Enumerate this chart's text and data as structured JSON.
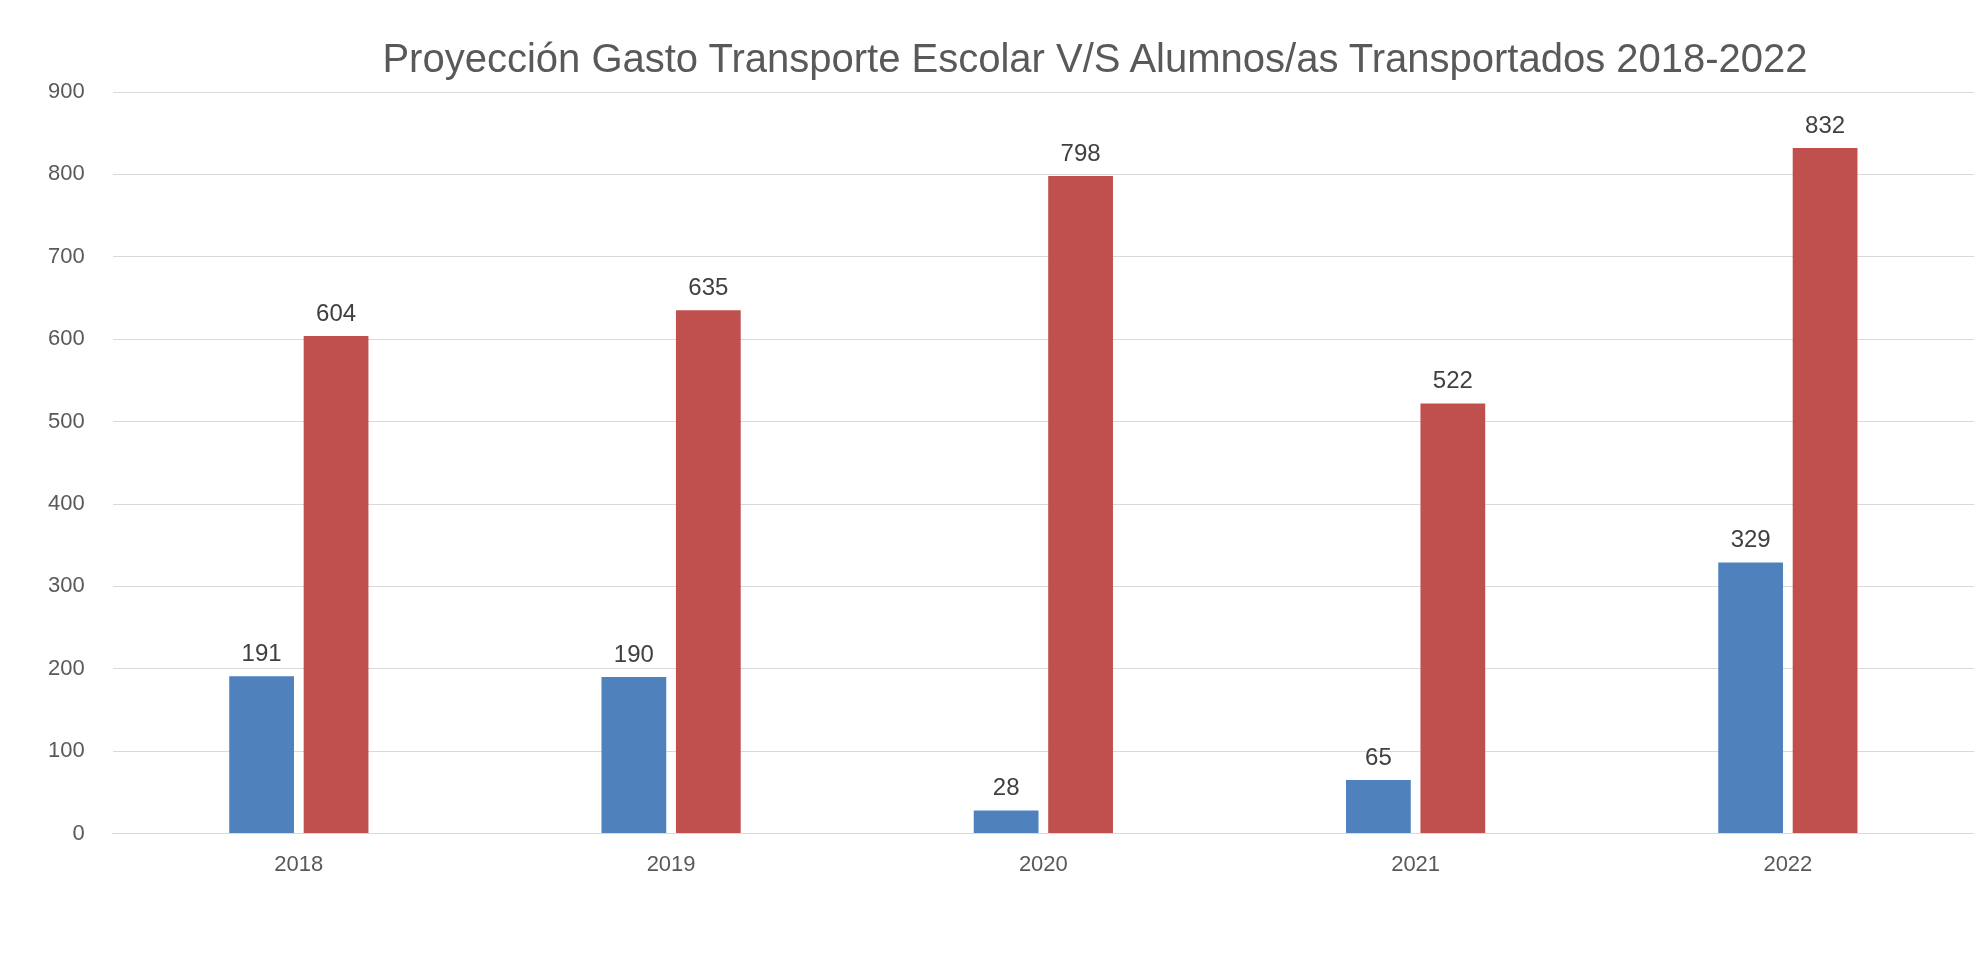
{
  "chart_data": {
    "type": "bar",
    "title": "Proyección Gasto Transporte Escolar V/S Alumnos/as Transportados 2018-2022",
    "categories": [
      "2018",
      "2019",
      "2020",
      "2021",
      "2022"
    ],
    "series": [
      {
        "color": "#4f81bd",
        "values": [
          191,
          190,
          28,
          65,
          329
        ]
      },
      {
        "color": "#c0504d",
        "values": [
          604,
          635,
          798,
          522,
          832
        ]
      }
    ],
    "ylim": [
      0,
      900
    ],
    "yticks": [
      0,
      100,
      200,
      300,
      400,
      500,
      600,
      700,
      800,
      900
    ],
    "grid": "y",
    "legend": false,
    "data_labels": true
  }
}
